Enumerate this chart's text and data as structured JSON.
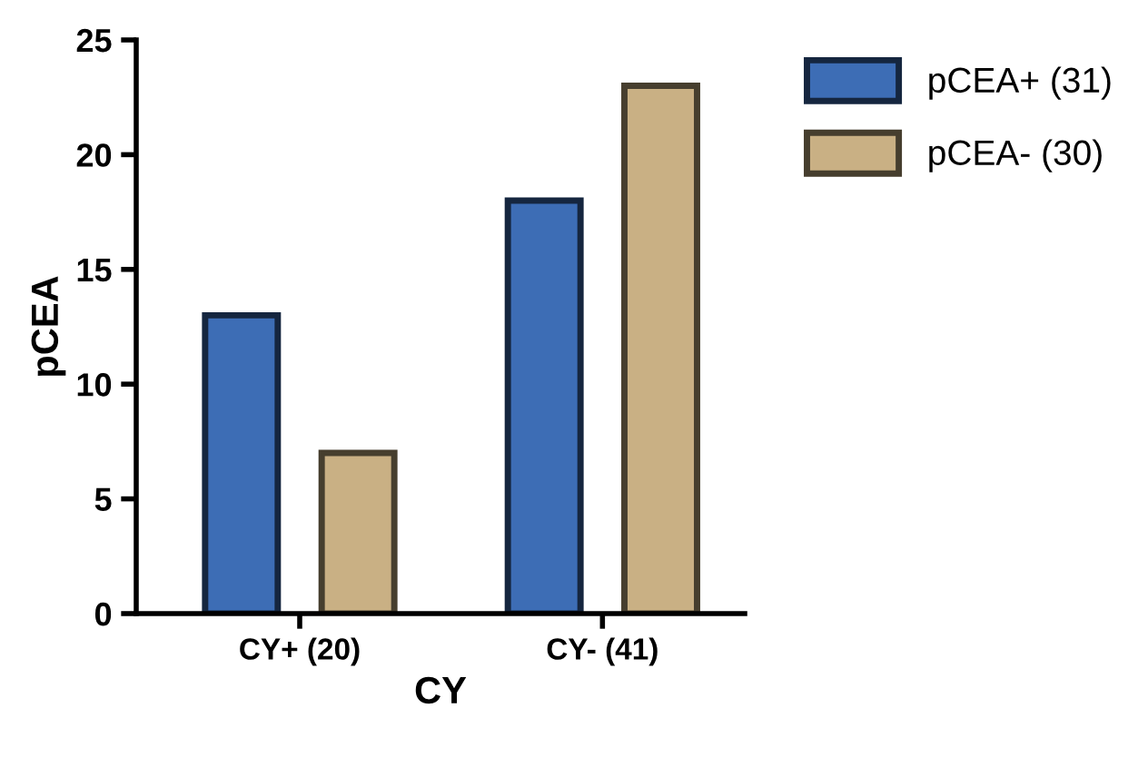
{
  "chart_data": {
    "type": "bar",
    "xlabel": "CY",
    "ylabel": "pCEA",
    "categories": [
      "CY+ (20)",
      "CY- (41)"
    ],
    "series": [
      {
        "name": "pCEA+ (31)",
        "color": "#3d6db5",
        "values": [
          13,
          18
        ]
      },
      {
        "name": "pCEA- (30)",
        "color": "#c9b084",
        "values": [
          7,
          23
        ]
      }
    ],
    "ylim": [
      0,
      25
    ],
    "yticks": [
      0,
      5,
      10,
      15,
      20,
      25
    ],
    "grid": false,
    "legend": "top right"
  }
}
